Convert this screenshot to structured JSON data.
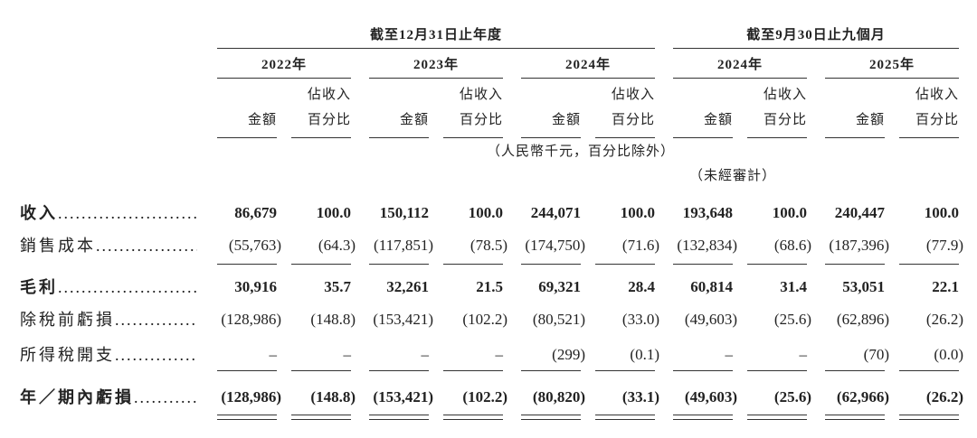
{
  "table": {
    "group_headers": [
      "截至12月31日止年度",
      "截至9月30日止九個月"
    ],
    "years": [
      "2022年",
      "2023年",
      "2024年",
      "2024年",
      "2025年"
    ],
    "col_headers": {
      "amount": "金額",
      "percent": [
        "佔收入",
        "百分比"
      ]
    },
    "unit_note": "（人民幣千元，百分比除外）",
    "audit_note": "（未經審計）",
    "rows": [
      {
        "label": "收入",
        "bold": true,
        "values": [
          "86,679",
          "100.0",
          "150,112",
          "100.0",
          "244,071",
          "100.0",
          "193,648",
          "100.0",
          "240,447",
          "100.0"
        ]
      },
      {
        "label": "銷售成本",
        "bold": false,
        "values": [
          "(55,763)",
          "(64.3)",
          "(117,851)",
          "(78.5)",
          "(174,750)",
          "(71.6)",
          "(132,834)",
          "(68.6)",
          "(187,396)",
          "(77.9)"
        ]
      },
      {
        "label": "毛利",
        "bold": true,
        "values": [
          "30,916",
          "35.7",
          "32,261",
          "21.5",
          "69,321",
          "28.4",
          "60,814",
          "31.4",
          "53,051",
          "22.1"
        ]
      },
      {
        "label": "除稅前虧損",
        "bold": false,
        "values": [
          "(128,986)",
          "(148.8)",
          "(153,421)",
          "(102.2)",
          "(80,521)",
          "(33.0)",
          "(49,603)",
          "(25.6)",
          "(62,896)",
          "(26.2)"
        ]
      },
      {
        "label": "所得稅開支",
        "bold": false,
        "values": [
          "–",
          "–",
          "–",
          "–",
          "(299)",
          "(0.1)",
          "–",
          "–",
          "(70)",
          "(0.0)"
        ]
      },
      {
        "label": "年／期內虧損",
        "bold": true,
        "values": [
          "(128,986)",
          "(148.8)",
          "(153,421)",
          "(102.2)",
          "(80,820)",
          "(33.1)",
          "(49,603)",
          "(25.6)",
          "(62,966)",
          "(26.2)"
        ]
      }
    ]
  }
}
